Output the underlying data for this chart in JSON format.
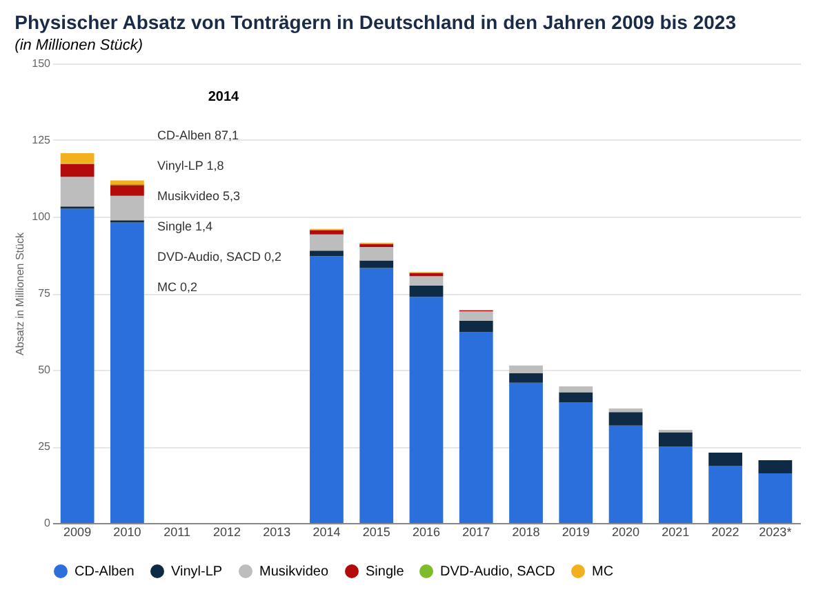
{
  "chart_data": {
    "type": "bar",
    "stacked": true,
    "title": "Physischer Absatz von Tonträgern in Deutschland in den Jahren 2009 bis 2023",
    "subtitle": "(in Millionen Stück)",
    "ylabel": "Absatz in Millionen Stück",
    "categories": [
      "2009",
      "2010",
      "2011",
      "2012",
      "2013",
      "2014",
      "2015",
      "2016",
      "2017",
      "2018",
      "2019",
      "2020",
      "2021",
      "2022",
      "2023*"
    ],
    "series": [
      {
        "name": "CD-Alben",
        "color": "#2a6fdb",
        "values": [
          102.6,
          98.1,
          null,
          null,
          null,
          87.1,
          83.2,
          73.8,
          62.3,
          45.8,
          39.3,
          31.8,
          24.9,
          18.7,
          16.2
        ]
      },
      {
        "name": "Vinyl-LP",
        "color": "#0f2a44",
        "values": [
          0.7,
          0.7,
          null,
          null,
          null,
          1.8,
          2.5,
          3.7,
          3.7,
          3.1,
          3.4,
          4.4,
          4.7,
          4.3,
          4.3
        ]
      },
      {
        "name": "Musikvideo",
        "color": "#bdbdbd",
        "values": [
          9.7,
          8.0,
          null,
          null,
          null,
          5.3,
          4.4,
          3.1,
          3.1,
          2.5,
          1.9,
          1.2,
          0.8,
          null,
          null
        ]
      },
      {
        "name": "Single",
        "color": "#b30b0b",
        "values": [
          4.1,
          3.5,
          null,
          null,
          null,
          1.4,
          1.0,
          1.0,
          0.3,
          0,
          0,
          0,
          0,
          0,
          0
        ]
      },
      {
        "name": "DVD-Audio, SACD",
        "color": "#7dbd2b",
        "values": [
          0.3,
          0.3,
          null,
          null,
          null,
          0.2,
          0.2,
          0.2,
          0.1,
          0,
          0,
          0,
          0,
          0,
          0
        ]
      },
      {
        "name": "MC",
        "color": "#f2b01e",
        "values": [
          3.3,
          1.2,
          null,
          null,
          null,
          0.2,
          0.2,
          0.1,
          0.1,
          0,
          0,
          0,
          0,
          0,
          0
        ]
      }
    ],
    "annotations": [
      "2014",
      "CD-Alben 87,1",
      "Vinyl-LP 1,8",
      "Musikvideo 5,3",
      "Single 1,4",
      "DVD-Audio, SACD 0,2",
      "MC 0,2"
    ],
    "ylim": [
      0,
      150
    ],
    "yticks": [
      0,
      25,
      50,
      75,
      100,
      125,
      150
    ],
    "grid": "y",
    "legend": "bottom"
  }
}
